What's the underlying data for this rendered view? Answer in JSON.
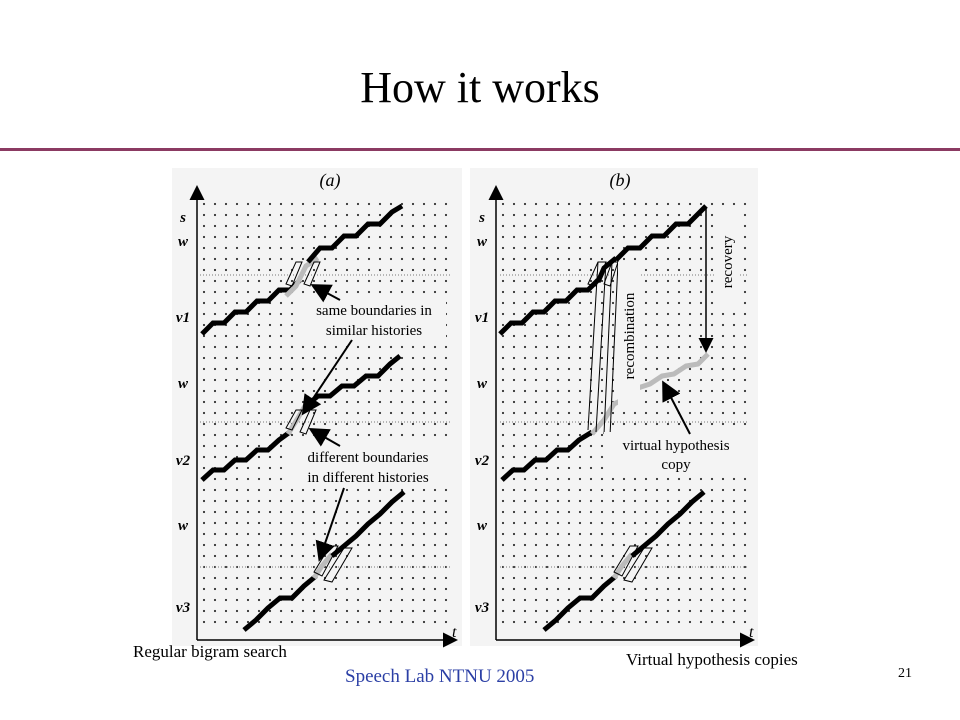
{
  "slide": {
    "title": "How it works",
    "footer": "Speech Lab NTNU 2005",
    "page_number": "21"
  },
  "figure": {
    "panels": [
      {
        "label": "(a)",
        "caption": "Regular bigram search",
        "y_labels": [
          "s",
          "w",
          "v1",
          "w",
          "v2",
          "w",
          "v3"
        ],
        "x_label": "t",
        "annotations": [
          "same boundaries in",
          "similar histories",
          "different boundaries",
          "in different histories"
        ]
      },
      {
        "label": "(b)",
        "caption": "Virtual hypothesis copies",
        "y_labels": [
          "s",
          "w",
          "v1",
          "w",
          "v2",
          "w",
          "v3"
        ],
        "x_label": "t",
        "annotations": [
          "recovery",
          "recombination",
          "virtual hypothesis",
          "copy"
        ]
      }
    ]
  }
}
